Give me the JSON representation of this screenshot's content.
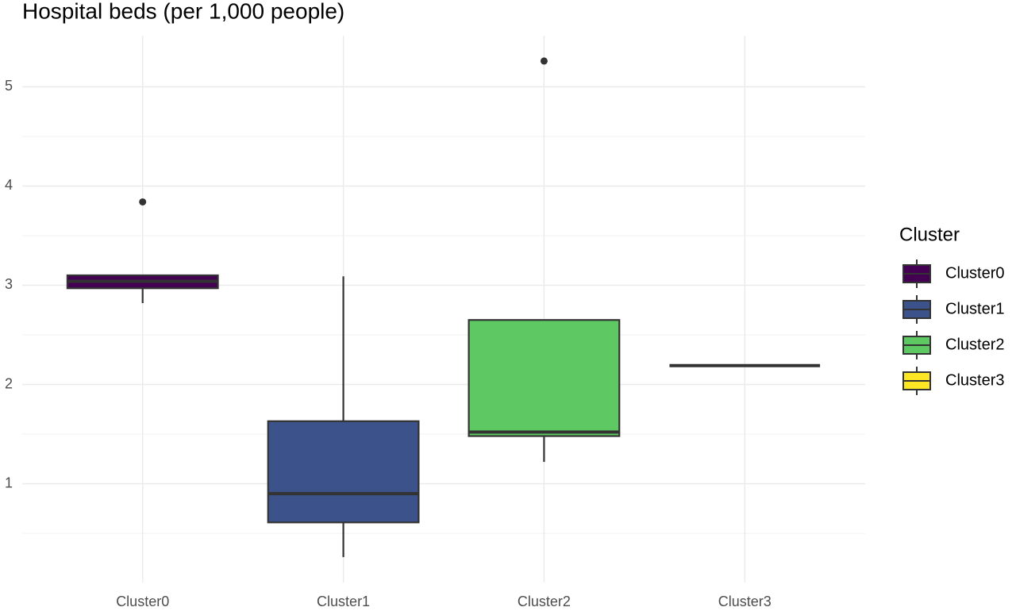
{
  "chart_data": {
    "type": "box",
    "title": "Hospital beds (per 1,000 people)",
    "categories": [
      "Cluster0",
      "Cluster1",
      "Cluster2",
      "Cluster3"
    ],
    "legend_title": "Cluster",
    "legend_position": "right",
    "series": [
      {
        "name": "Cluster0",
        "color": "#440154",
        "min": 2.82,
        "q1": 2.97,
        "median": 3.04,
        "q3": 3.1,
        "max": 3.1,
        "outliers": [
          3.84
        ]
      },
      {
        "name": "Cluster1",
        "color": "#3B528B",
        "min": 0.26,
        "q1": 0.61,
        "median": 0.9,
        "q3": 1.63,
        "max": 3.09,
        "outliers": []
      },
      {
        "name": "Cluster2",
        "color": "#5EC962",
        "min": 1.22,
        "q1": 1.48,
        "median": 1.52,
        "q3": 2.65,
        "max": 2.65,
        "outliers": [
          5.26
        ]
      },
      {
        "name": "Cluster3",
        "color": "#FDE725",
        "min": 2.19,
        "q1": 2.19,
        "median": 2.19,
        "q3": 2.19,
        "max": 2.19,
        "outliers": []
      }
    ],
    "ylim": [
      0.005,
      5.515
    ],
    "yticks": [
      1,
      2,
      3,
      4,
      5
    ],
    "minor_yticks": [
      0.5,
      1.5,
      2.5,
      3.5,
      4.5
    ],
    "grid": true
  }
}
